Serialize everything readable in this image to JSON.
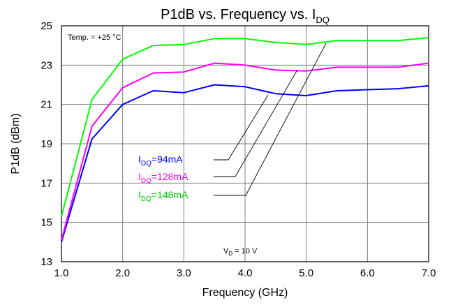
{
  "chart_data": {
    "type": "line",
    "title": {
      "main": "P1dB vs. Frequency vs. I",
      "sub": "DQ"
    },
    "xlabel": "Frequency (GHz)",
    "ylabel": "P1dB (dBm)",
    "xlim": [
      1.0,
      7.0
    ],
    "ylim": [
      13,
      25
    ],
    "xticks": [
      "1.0",
      "2.0",
      "3.0",
      "4.0",
      "5.0",
      "6.0",
      "7.0"
    ],
    "yticks": [
      "13",
      "15",
      "17",
      "19",
      "21",
      "23",
      "25"
    ],
    "grid": true,
    "annotations": {
      "temp": "Temp. = +25 °C",
      "vd": {
        "prefix": "V",
        "sub": "D",
        "suffix": " = 10 V"
      }
    },
    "x": [
      1.0,
      1.5,
      2.0,
      2.5,
      3.0,
      3.5,
      4.0,
      4.5,
      5.0,
      5.5,
      6.0,
      6.5,
      7.0
    ],
    "series": [
      {
        "name": {
          "prefix": "I",
          "sub": "DQ",
          "suffix": "=94mA"
        },
        "color": "#0000ff",
        "values": [
          14.0,
          19.25,
          21.0,
          21.7,
          21.6,
          22.0,
          21.9,
          21.55,
          21.45,
          21.7,
          21.75,
          21.8,
          21.95
        ]
      },
      {
        "name": {
          "prefix": "I",
          "sub": "DQ",
          "suffix": "=128mA"
        },
        "color": "#ff00ff",
        "values": [
          14.1,
          19.9,
          21.85,
          22.6,
          22.65,
          23.1,
          23.0,
          22.75,
          22.7,
          22.9,
          22.9,
          22.9,
          23.1
        ]
      },
      {
        "name": {
          "prefix": "I",
          "sub": "DQ",
          "suffix": "=148mA"
        },
        "color": "#00ff00",
        "values": [
          15.3,
          21.25,
          23.3,
          24.0,
          24.05,
          24.35,
          24.35,
          24.15,
          24.05,
          24.25,
          24.25,
          24.25,
          24.4
        ]
      }
    ]
  }
}
